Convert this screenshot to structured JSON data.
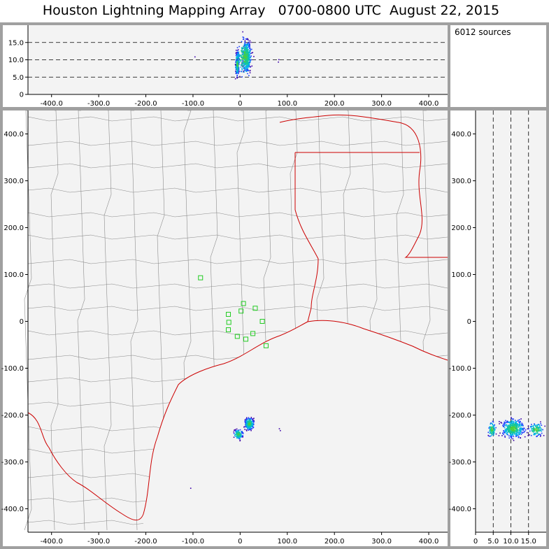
{
  "title": "Houston Lightning Mapping Array   0700-0800 UTC  August 22, 2015",
  "source_count": "6012 sources",
  "colors": {
    "frame": "#a0a0a0",
    "panel_bg": "#f3f3f3",
    "county": "#8c8c8c",
    "coast": "#cc0000",
    "station": "#22cc22",
    "density": [
      "#3b00a8",
      "#1a3dff",
      "#00b4e6",
      "#16c79a",
      "#4ccf3c"
    ]
  },
  "chart_data": [
    {
      "panel": "altitude-vs-east-west",
      "type": "scatter",
      "xlim": [
        -450,
        440
      ],
      "ylim": [
        0,
        20
      ],
      "xticks": [
        -400,
        -300,
        -200,
        -100,
        0,
        100,
        200,
        300,
        400
      ],
      "xtick_labels": [
        "-400.0",
        "-300.0",
        "-200.0",
        "-100.0",
        "0",
        "100.0",
        "200.0",
        "300.0",
        "400.0"
      ],
      "yticks": [
        0,
        5,
        10,
        15
      ],
      "ytick_labels": [
        "0",
        "5.0",
        "10.0",
        "15.0"
      ],
      "reference_lines": [
        5,
        10,
        15
      ],
      "clusters": [
        {
          "x": [
            -12,
            -2
          ],
          "y": [
            4,
            14
          ],
          "n": 240
        },
        {
          "x": [
            0,
            25
          ],
          "y": [
            5,
            17
          ],
          "n": 380
        },
        {
          "x": [
            -14,
            30
          ],
          "y": [
            3,
            19
          ],
          "n": 160
        }
      ],
      "outliers": [
        [
          -97,
          11.0
        ],
        [
          80,
          9.5
        ],
        [
          81,
          10.2
        ]
      ]
    },
    {
      "panel": "plan-view",
      "type": "scatter",
      "xlim": [
        -450,
        440
      ],
      "ylim": [
        -450,
        450
      ],
      "xticks": [
        -400,
        -300,
        -200,
        -100,
        0,
        100,
        200,
        300,
        400
      ],
      "xtick_labels": [
        "-400.0",
        "-300.0",
        "-200.0",
        "-100.0",
        "0",
        "100.0",
        "200.0",
        "300.0",
        "400.0"
      ],
      "yticks": [
        -400,
        -300,
        -200,
        -100,
        0,
        100,
        200,
        300,
        400
      ],
      "ytick_labels": [
        "-400.0",
        "-300.0",
        "-200.0",
        "-100.0",
        "0",
        "100.0",
        "200.0",
        "300.0",
        "400.0"
      ],
      "stations": [
        [
          -84,
          93
        ],
        [
          -25,
          15
        ],
        [
          2,
          22
        ],
        [
          7,
          38
        ],
        [
          32,
          28
        ],
        [
          47,
          0
        ],
        [
          -24,
          -2
        ],
        [
          -25,
          -18
        ],
        [
          -6,
          -32
        ],
        [
          12,
          -38
        ],
        [
          27,
          -26
        ],
        [
          55,
          -52
        ]
      ],
      "clusters": [
        {
          "x": [
            -18,
            8
          ],
          "y": [
            -255,
            -225
          ],
          "n": 120
        },
        {
          "x": [
            5,
            32
          ],
          "y": [
            -235,
            -200
          ],
          "n": 260
        }
      ],
      "outliers": [
        [
          82,
          -228
        ],
        [
          84,
          -232
        ],
        [
          -106,
          -355
        ]
      ]
    },
    {
      "panel": "north-south-vs-altitude",
      "type": "scatter",
      "xlim": [
        0,
        20
      ],
      "ylim": [
        -450,
        450
      ],
      "xticks": [
        0,
        5,
        10,
        15
      ],
      "xtick_labels": [
        "0",
        "5.0",
        "10.0",
        "15.0"
      ],
      "yticks": [
        -400,
        -300,
        -200,
        -100,
        0,
        100,
        200,
        300,
        400
      ],
      "ytick_labels": [
        "-400.0",
        "-300.0",
        "-200.0",
        "-100.0",
        "0",
        "100.0",
        "200.0",
        "300.0",
        "400.0"
      ],
      "reference_lines": [
        5,
        10,
        15
      ],
      "clusters": [
        {
          "x": [
            3,
            6
          ],
          "y": [
            -255,
            -205
          ],
          "n": 90
        },
        {
          "x": [
            6,
            15
          ],
          "y": [
            -255,
            -200
          ],
          "n": 420
        },
        {
          "x": [
            14,
            20
          ],
          "y": [
            -250,
            -210
          ],
          "n": 120
        }
      ]
    }
  ]
}
